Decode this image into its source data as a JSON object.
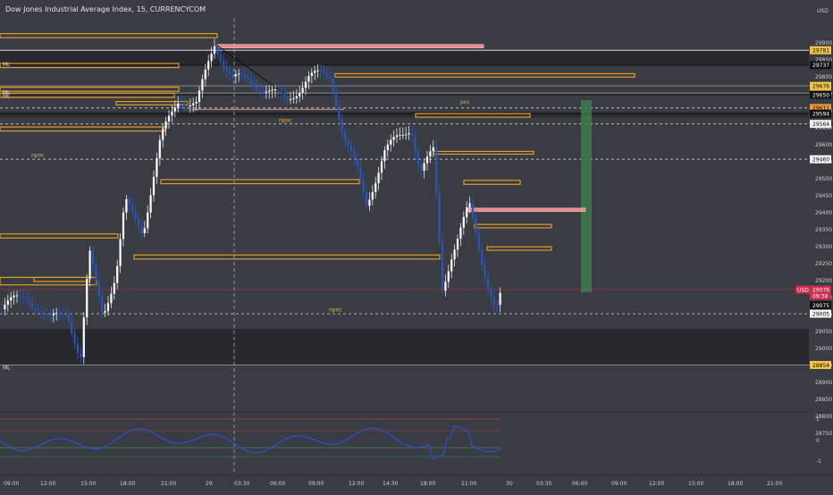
{
  "header": {
    "title": "Dow Jones Industrial Average Index, 15, CURRENCYCOM"
  },
  "price_axis": {
    "currency": "USD",
    "ticks": [
      "29900",
      "29850",
      "29800",
      "29750",
      "29700",
      "29650",
      "29600",
      "29550",
      "29500",
      "29450",
      "29400",
      "29350",
      "29300",
      "29250",
      "29200",
      "29150",
      "29100",
      "29050",
      "29000",
      "28950",
      "28900",
      "28850",
      "28800",
      "28750"
    ],
    "tags": [
      {
        "text": "29781",
        "kind": "yellow",
        "value": 29781
      },
      {
        "text": "29737",
        "kind": "black",
        "value": 29737
      },
      {
        "text": "29676",
        "kind": "yellow",
        "value": 29676
      },
      {
        "text": "29655",
        "kind": "yellow",
        "value": 29655
      },
      {
        "text": "29650",
        "kind": "black",
        "value": 29650
      },
      {
        "text": "29611",
        "kind": "orange",
        "value": 29611
      },
      {
        "text": "29594",
        "kind": "black",
        "value": 29594
      },
      {
        "text": "29564",
        "kind": "white",
        "value": 29564
      },
      {
        "text": "29460",
        "kind": "white",
        "value": 29460
      },
      {
        "text": "29076",
        "kind": "red",
        "value": 29076
      },
      {
        "text": "09:38",
        "kind": "red",
        "value": 29058
      },
      {
        "text": "29075",
        "kind": "black",
        "value": 29030
      },
      {
        "text": "29005",
        "kind": "white",
        "value": 29005
      },
      {
        "text": "28854",
        "kind": "yellow",
        "value": 28854
      }
    ],
    "usd_tag": "USD"
  },
  "rsi_axis": {
    "ticks": [
      "1",
      "0",
      "-1"
    ]
  },
  "time_axis": {
    "ticks": [
      "09:00",
      "12:00",
      "15:00",
      "18:00",
      "21:00",
      "29",
      "03:30",
      "06:00",
      "09:00",
      "12:00",
      "14:30",
      "18:00",
      "21:00",
      "30",
      "03:30",
      "06:00",
      "09:00",
      "12:00",
      "15:00",
      "18:00",
      "21:00"
    ]
  },
  "chart_labels": {
    "poc": "poc",
    "npoc": [
      "npoc",
      "npoc",
      "npoc"
    ],
    "ml": [
      "ML",
      "ML",
      "ML",
      "ML"
    ]
  },
  "colors": {
    "background": "#3a3c43",
    "candle_up": "#ffffff",
    "candle_down": "#2a56b8",
    "level_box": "#e09a2a",
    "resistance_box": "#e88a8a",
    "green_zone": "#3f7a48",
    "rsi_line": "#2d4fc7"
  },
  "chart_data": {
    "type": "line",
    "title": "Dow Jones Industrial Average Index, 15, CURRENCYCOM",
    "y_unit": "USD",
    "ylim": [
      28700,
      29950
    ],
    "x": [
      "09:00",
      "12:00",
      "15:00",
      "18:00",
      "21:00",
      "29",
      "03:30",
      "06:00",
      "09:00",
      "12:00",
      "14:30",
      "18:00",
      "21:00"
    ],
    "series": [
      {
        "values": [
          29000,
          29080,
          29020,
          29050,
          29400,
          29760,
          29780,
          29650,
          29700,
          29420,
          29550,
          29080,
          29010
        ]
      }
    ],
    "last_price": 29076,
    "grid": false
  }
}
